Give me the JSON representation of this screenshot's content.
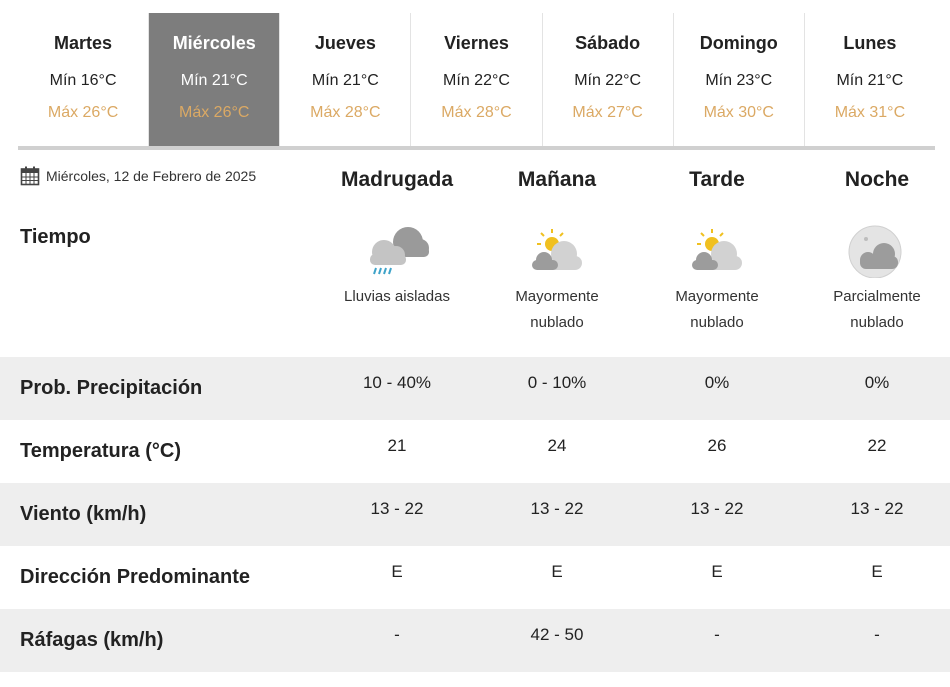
{
  "days": [
    {
      "day": "Martes",
      "min": "Mín 16°C",
      "max": "Máx 26°C",
      "active": false
    },
    {
      "day": "Miércoles",
      "min": "Mín 21°C",
      "max": "Máx 26°C",
      "active": true
    },
    {
      "day": "Jueves",
      "min": "Mín 21°C",
      "max": "Máx 28°C",
      "active": false
    },
    {
      "day": "Viernes",
      "min": "Mín 22°C",
      "max": "Máx 28°C",
      "active": false
    },
    {
      "day": "Sábado",
      "min": "Mín 22°C",
      "max": "Máx 27°C",
      "active": false
    },
    {
      "day": "Domingo",
      "min": "Mín 23°C",
      "max": "Máx 30°C",
      "active": false
    },
    {
      "day": "Lunes",
      "min": "Mín 21°C",
      "max": "Máx 31°C",
      "active": false
    }
  ],
  "date": "Miércoles, 12 de Febrero de 2025",
  "periods": [
    "Madrugada",
    "Mañana",
    "Tarde",
    "Noche"
  ],
  "tiempo": {
    "label": "Tiempo",
    "items": [
      {
        "icon": "rain-cloud-icon",
        "desc": "Lluvias aisladas"
      },
      {
        "icon": "sun-behind-cloud-icon",
        "desc": "Mayormente nublado"
      },
      {
        "icon": "sun-behind-cloud-icon",
        "desc": "Mayormente nublado"
      },
      {
        "icon": "moon-cloud-icon",
        "desc": "Parcialmente nublado"
      }
    ]
  },
  "rows": [
    {
      "label": "Prob. Precipitación",
      "values": [
        "10 - 40%",
        "0 - 10%",
        "0%",
        "0%"
      ]
    },
    {
      "label": "Temperatura (°C)",
      "values": [
        "21",
        "24",
        "26",
        "22"
      ]
    },
    {
      "label": "Viento (km/h)",
      "values": [
        "13 - 22",
        "13 - 22",
        "13 - 22",
        "13 - 22"
      ]
    },
    {
      "label": "Dirección Predominante",
      "values": [
        "E",
        "E",
        "E",
        "E"
      ]
    },
    {
      "label": "Ráfagas (km/h)",
      "values": [
        "-",
        "42 - 50",
        "-",
        "-"
      ]
    }
  ],
  "colors": {
    "active_tab": "#7d7d7d",
    "max_temp": "#dba964",
    "row_stripe": "#eeeeee"
  }
}
